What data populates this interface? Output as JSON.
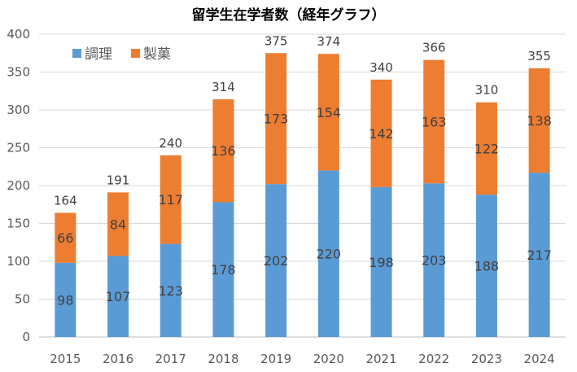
{
  "chart_data": {
    "type": "bar",
    "stacked": true,
    "title": "留学生在学者数（経年グラフ）",
    "categories": [
      "2015",
      "2016",
      "2017",
      "2018",
      "2019",
      "2020",
      "2021",
      "2022",
      "2023",
      "2024"
    ],
    "series": [
      {
        "name": "調理",
        "color": "#5B9BD5",
        "values": [
          98,
          107,
          123,
          178,
          202,
          220,
          198,
          203,
          188,
          217
        ]
      },
      {
        "name": "製菓",
        "color": "#ED7D31",
        "values": [
          66,
          84,
          117,
          136,
          173,
          154,
          142,
          163,
          122,
          138
        ]
      }
    ],
    "totals": [
      164,
      191,
      240,
      314,
      375,
      374,
      340,
      366,
      310,
      355
    ],
    "ylim": [
      0,
      400
    ],
    "yticks": [
      0,
      50,
      100,
      150,
      200,
      250,
      300,
      350,
      400
    ],
    "xlabel": "",
    "ylabel": "",
    "legend_position": "top-left"
  }
}
